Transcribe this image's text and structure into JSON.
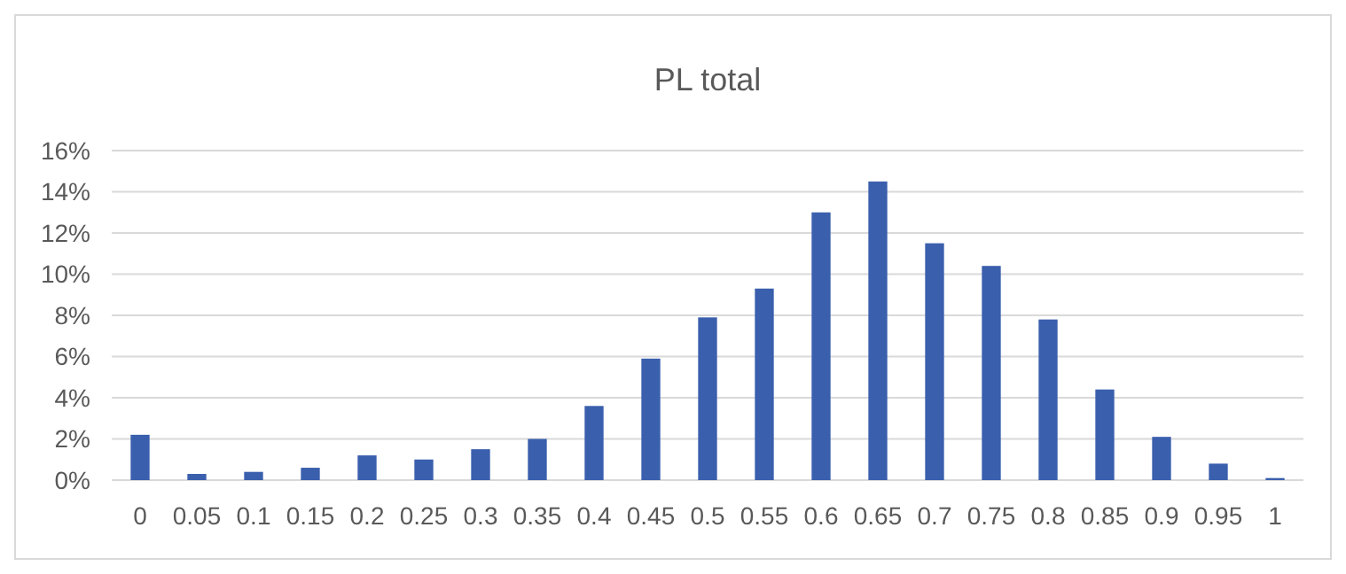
{
  "chart_data": {
    "type": "bar",
    "title": "PL total",
    "categories": [
      "0",
      "0.05",
      "0.1",
      "0.15",
      "0.2",
      "0.25",
      "0.3",
      "0.35",
      "0.4",
      "0.45",
      "0.5",
      "0.55",
      "0.6",
      "0.65",
      "0.7",
      "0.75",
      "0.8",
      "0.85",
      "0.9",
      "0.95",
      "1"
    ],
    "values": [
      2.2,
      0.3,
      0.4,
      0.6,
      1.2,
      1,
      1.5,
      2,
      3.6,
      5.9,
      7.9,
      9.3,
      13,
      14.5,
      11.5,
      10.4,
      7.8,
      4.4,
      2.1,
      0.8,
      0.1
    ],
    "color": "#3a5fad",
    "ylim": [
      0,
      16
    ],
    "yticks": [
      {
        "value": 0,
        "label": "0%"
      },
      {
        "value": 2,
        "label": "2%"
      },
      {
        "value": 4,
        "label": "4%"
      },
      {
        "value": 6,
        "label": "6%"
      },
      {
        "value": 8,
        "label": "8%"
      },
      {
        "value": 10,
        "label": "10%"
      },
      {
        "value": 12,
        "label": "12%"
      },
      {
        "value": 14,
        "label": "14%"
      },
      {
        "value": 16,
        "label": "16%"
      }
    ],
    "grid": "y"
  }
}
